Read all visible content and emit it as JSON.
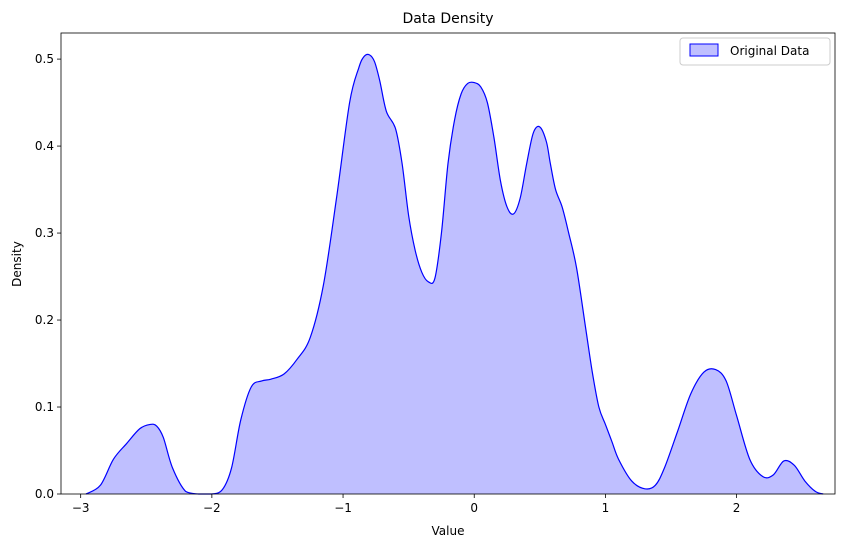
{
  "chart_data": {
    "type": "area",
    "title": "Data Density",
    "xlabel": "Value",
    "ylabel": "Density",
    "xlim": [
      -3.15,
      2.75
    ],
    "ylim": [
      0,
      0.53
    ],
    "xticks": [
      -3,
      -2,
      -1,
      0,
      1,
      2
    ],
    "xtick_labels": [
      "−3",
      "−2",
      "−1",
      "0",
      "1",
      "2"
    ],
    "yticks": [
      0.0,
      0.1,
      0.2,
      0.3,
      0.4,
      0.5
    ],
    "ytick_labels": [
      "0.0",
      "0.1",
      "0.2",
      "0.3",
      "0.4",
      "0.5"
    ],
    "grid": false,
    "legend": {
      "position": "top-right",
      "entries": [
        "Original Data"
      ]
    },
    "colors": {
      "line": "#0000ff",
      "fill": "#bfbfff"
    },
    "series": [
      {
        "name": "Original Data",
        "x": [
          -2.96,
          -2.85,
          -2.75,
          -2.65,
          -2.55,
          -2.47,
          -2.42,
          -2.37,
          -2.3,
          -2.2,
          -2.1,
          -2.0,
          -1.92,
          -1.85,
          -1.78,
          -1.7,
          -1.62,
          -1.55,
          -1.45,
          -1.35,
          -1.25,
          -1.15,
          -1.05,
          -0.95,
          -0.88,
          -0.84,
          -0.8,
          -0.76,
          -0.72,
          -0.67,
          -0.6,
          -0.55,
          -0.5,
          -0.45,
          -0.4,
          -0.35,
          -0.3,
          -0.25,
          -0.2,
          -0.15,
          -0.1,
          -0.05,
          0.0,
          0.05,
          0.1,
          0.15,
          0.2,
          0.25,
          0.3,
          0.35,
          0.4,
          0.45,
          0.5,
          0.55,
          0.58,
          0.62,
          0.67,
          0.72,
          0.78,
          0.85,
          0.9,
          0.95,
          1.0,
          1.05,
          1.1,
          1.2,
          1.3,
          1.38,
          1.45,
          1.55,
          1.65,
          1.75,
          1.84,
          1.92,
          2.0,
          2.1,
          2.2,
          2.28,
          2.36,
          2.44,
          2.52,
          2.6,
          2.66
        ],
        "y": [
          0.0,
          0.01,
          0.04,
          0.058,
          0.075,
          0.08,
          0.078,
          0.065,
          0.03,
          0.003,
          0.0,
          0.0,
          0.005,
          0.03,
          0.085,
          0.123,
          0.13,
          0.132,
          0.138,
          0.155,
          0.18,
          0.24,
          0.34,
          0.45,
          0.49,
          0.503,
          0.505,
          0.497,
          0.475,
          0.44,
          0.42,
          0.38,
          0.32,
          0.28,
          0.255,
          0.244,
          0.248,
          0.3,
          0.38,
          0.43,
          0.46,
          0.472,
          0.473,
          0.468,
          0.45,
          0.41,
          0.36,
          0.33,
          0.322,
          0.34,
          0.38,
          0.415,
          0.422,
          0.405,
          0.38,
          0.35,
          0.33,
          0.3,
          0.26,
          0.19,
          0.14,
          0.1,
          0.08,
          0.06,
          0.04,
          0.015,
          0.006,
          0.01,
          0.03,
          0.072,
          0.115,
          0.14,
          0.143,
          0.13,
          0.09,
          0.04,
          0.02,
          0.022,
          0.038,
          0.033,
          0.015,
          0.003,
          0.0
        ]
      }
    ]
  }
}
